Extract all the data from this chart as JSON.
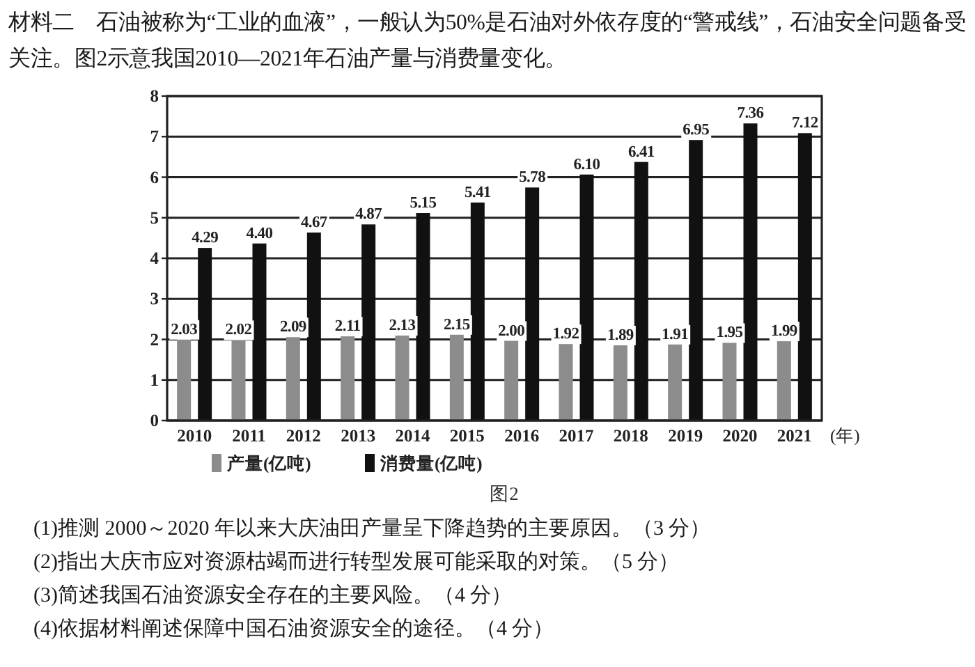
{
  "chart_data": {
    "type": "bar",
    "title": "材料二　石油被称为“工业的血液”，一般认为50%是石油对外依存度的“警戒线”，石油安全问题备受关注。图2示意我国2010—2021年石油产量与消费量变化。",
    "xlabel": "(年)",
    "categories": [
      "2010",
      "2011",
      "2012",
      "2013",
      "2014",
      "2015",
      "2016",
      "2017",
      "2018",
      "2019",
      "2020",
      "2021"
    ],
    "series": [
      {
        "name": "产量(亿吨)",
        "color": "#8c8c8c",
        "values": [
          2.03,
          2.02,
          2.09,
          2.11,
          2.13,
          2.15,
          2.0,
          1.92,
          1.89,
          1.91,
          1.95,
          1.99
        ],
        "value_labels": [
          "2.03",
          "2.02",
          "2.09",
          "2.11",
          "2.13",
          "2.15",
          "2.00",
          "1.92",
          "1.89",
          "1.91",
          "1.95",
          "1.99"
        ]
      },
      {
        "name": "消费量(亿吨)",
        "color": "#111111",
        "values": [
          4.29,
          4.4,
          4.67,
          4.87,
          5.15,
          5.41,
          5.78,
          6.1,
          6.41,
          6.95,
          7.36,
          7.12
        ],
        "value_labels": [
          "4.29",
          "4.40",
          "4.67",
          "4.87",
          "5.15",
          "5.41",
          "5.78",
          "6.10",
          "6.41",
          "6.95",
          "7.36",
          "7.12"
        ]
      }
    ],
    "ylim": [
      0,
      8
    ],
    "yticks": [
      0,
      1,
      2,
      3,
      4,
      5,
      6,
      7,
      8
    ],
    "grid": "y",
    "legend": "bottom",
    "annotations": [
      "图2",
      "(1)推测 2000～2020 年以来大庆油田产量呈下降趋势的主要原因。（3 分）",
      "(2)指出大庆市应对资源枯竭而进行转型发展可能采取的对策。（5 分）",
      "(3)简述我国石油资源安全存在的主要风险。（4 分）",
      "(4)依据材料阐述保障中国石油资源安全的途径。（4 分）"
    ]
  }
}
